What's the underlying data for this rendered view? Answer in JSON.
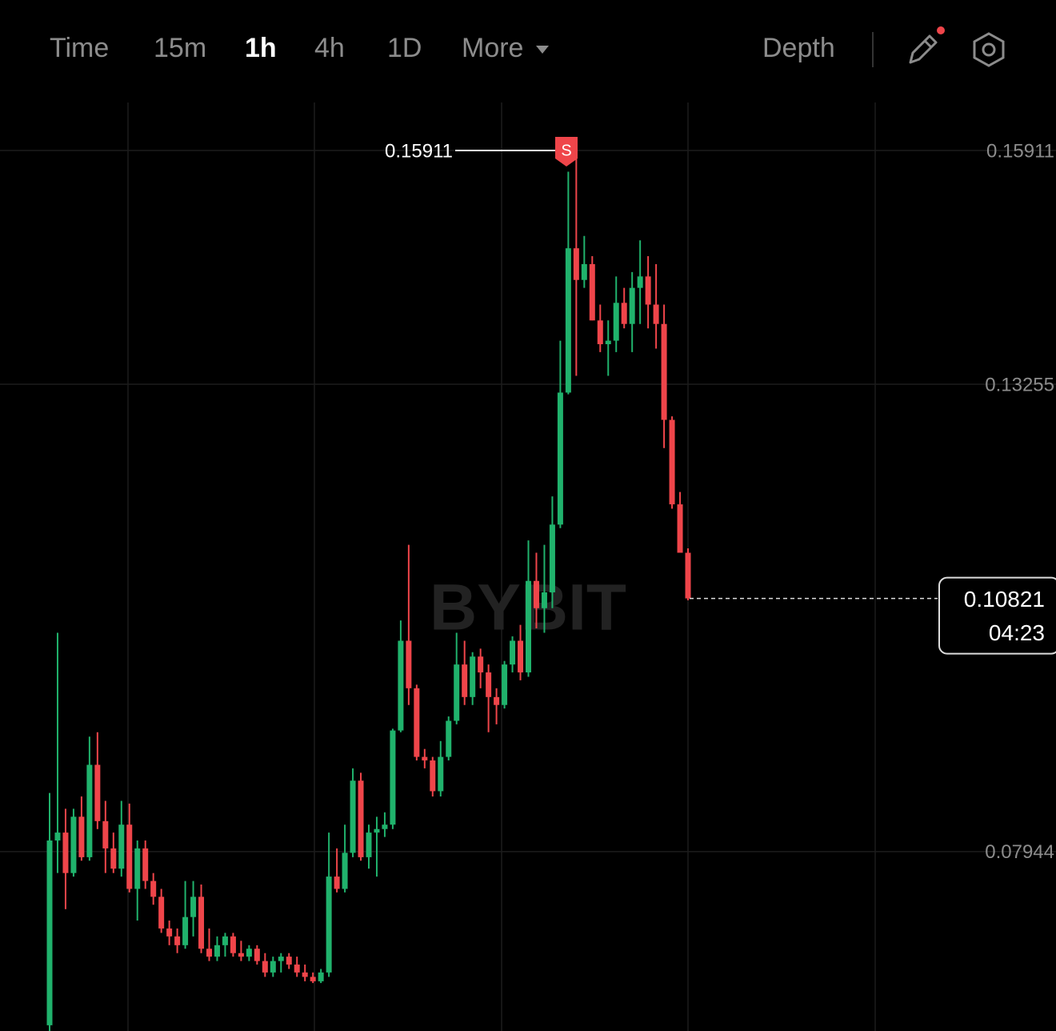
{
  "toolbar": {
    "intervals": [
      "Time",
      "15m",
      "1h",
      "4h",
      "1D",
      "More"
    ],
    "active_index": 2,
    "depth": "Depth"
  },
  "chart_data": {
    "type": "candlestick",
    "watermark": "BYBIT",
    "up_color": "#20b26c",
    "down_color": "#ef454a",
    "ylim": [
      0.05905,
      0.16457
    ],
    "yticks": [
      0.15911,
      0.13255,
      0.07944
    ],
    "open": [
      0.0597,
      0.0807,
      0.0816,
      0.077,
      0.0834,
      0.0788,
      0.0893,
      0.0829,
      0.0798,
      0.0775,
      0.0825,
      0.0752,
      0.0798,
      0.0761,
      0.0743,
      0.0707,
      0.0698,
      0.0688,
      0.072,
      0.0743,
      0.0684,
      0.0675,
      0.0688,
      0.0698,
      0.0679,
      0.0675,
      0.0684,
      0.067,
      0.0657,
      0.067,
      0.0675,
      0.0666,
      0.0657,
      0.0652,
      0.0647,
      0.0657,
      0.0766,
      0.0752,
      0.0793,
      0.0875,
      0.0788,
      0.0816,
      0.082,
      0.0825,
      0.0932,
      0.1034,
      0.098,
      0.0902,
      0.0898,
      0.0863,
      0.0902,
      0.0943,
      0.1007,
      0.097,
      0.1016,
      0.0998,
      0.097,
      0.0961,
      0.1007,
      0.1034,
      0.0998,
      0.1102,
      0.1071,
      0.1089,
      0.1166,
      0.1316,
      0.148,
      0.1444,
      0.1462,
      0.1398,
      0.1371,
      0.1375,
      0.1418,
      0.1394,
      0.1435,
      0.1448,
      0.1416,
      0.1394,
      0.1285,
      0.1189,
      0.1134
    ],
    "high": [
      0.0861,
      0.1043,
      0.0843,
      0.0843,
      0.0857,
      0.0925,
      0.093,
      0.0852,
      0.0816,
      0.0852,
      0.0849,
      0.0807,
      0.0807,
      0.077,
      0.0752,
      0.0716,
      0.0707,
      0.0761,
      0.0761,
      0.0757,
      0.0707,
      0.0698,
      0.0702,
      0.0702,
      0.0693,
      0.0688,
      0.0688,
      0.0679,
      0.0675,
      0.0679,
      0.0679,
      0.0675,
      0.0666,
      0.0657,
      0.0661,
      0.0816,
      0.0798,
      0.0825,
      0.0889,
      0.0884,
      0.0825,
      0.0834,
      0.0839,
      0.0934,
      0.1057,
      0.1143,
      0.0984,
      0.0911,
      0.0902,
      0.092,
      0.0948,
      0.1043,
      0.1034,
      0.1021,
      0.1025,
      0.1007,
      0.098,
      0.1011,
      0.1039,
      0.1052,
      0.1148,
      0.1134,
      0.1143,
      0.1198,
      0.1375,
      0.1567,
      0.15911,
      0.1494,
      0.1471,
      0.1416,
      0.1398,
      0.1448,
      0.1435,
      0.1453,
      0.1489,
      0.1471,
      0.1462,
      0.1416,
      0.1289,
      0.1203,
      0.1139
    ],
    "low": [
      0.059,
      0.077,
      0.0729,
      0.0766,
      0.0784,
      0.0784,
      0.082,
      0.077,
      0.077,
      0.0766,
      0.0748,
      0.0716,
      0.0752,
      0.0734,
      0.0702,
      0.0688,
      0.0679,
      0.0684,
      0.0698,
      0.0679,
      0.067,
      0.067,
      0.0675,
      0.0675,
      0.067,
      0.067,
      0.0666,
      0.0652,
      0.0652,
      0.0657,
      0.0661,
      0.0652,
      0.0647,
      0.0645,
      0.0645,
      0.0652,
      0.0748,
      0.0748,
      0.0788,
      0.0784,
      0.0775,
      0.0766,
      0.0811,
      0.082,
      0.093,
      0.0961,
      0.0898,
      0.0889,
      0.0857,
      0.0857,
      0.0898,
      0.0939,
      0.0961,
      0.0961,
      0.098,
      0.093,
      0.0939,
      0.0957,
      0.0998,
      0.0989,
      0.0993,
      0.1048,
      0.1043,
      0.1071,
      0.1162,
      0.1314,
      0.1335,
      0.1435,
      0.1398,
      0.1362,
      0.1335,
      0.1362,
      0.1389,
      0.1362,
      0.1394,
      0.1389,
      0.1366,
      0.1253,
      0.1184,
      0.1134,
      0.108
    ],
    "close": [
      0.0807,
      0.0816,
      0.077,
      0.0834,
      0.0788,
      0.0893,
      0.0829,
      0.0798,
      0.0775,
      0.0825,
      0.0752,
      0.0798,
      0.0761,
      0.0743,
      0.0707,
      0.0698,
      0.0688,
      0.072,
      0.0743,
      0.0684,
      0.0675,
      0.0688,
      0.0698,
      0.0679,
      0.0675,
      0.0684,
      0.067,
      0.0657,
      0.067,
      0.0675,
      0.0666,
      0.0657,
      0.0652,
      0.0647,
      0.0657,
      0.0766,
      0.0752,
      0.0793,
      0.0875,
      0.0788,
      0.0816,
      0.082,
      0.0825,
      0.0932,
      0.1034,
      0.098,
      0.0902,
      0.0898,
      0.0863,
      0.0902,
      0.0943,
      0.1007,
      0.097,
      0.1016,
      0.0998,
      0.097,
      0.0961,
      0.1007,
      0.1034,
      0.0998,
      0.1102,
      0.1071,
      0.1089,
      0.1166,
      0.1316,
      0.148,
      0.1444,
      0.1462,
      0.1398,
      0.1371,
      0.1375,
      0.1418,
      0.1394,
      0.1435,
      0.1448,
      0.1416,
      0.1394,
      0.1285,
      0.1189,
      0.1134,
      0.10821
    ],
    "annotations": {
      "high": {
        "value": 0.15911,
        "flag": "S"
      },
      "last_price": {
        "value": 0.10821,
        "timer": "04:23"
      }
    }
  }
}
